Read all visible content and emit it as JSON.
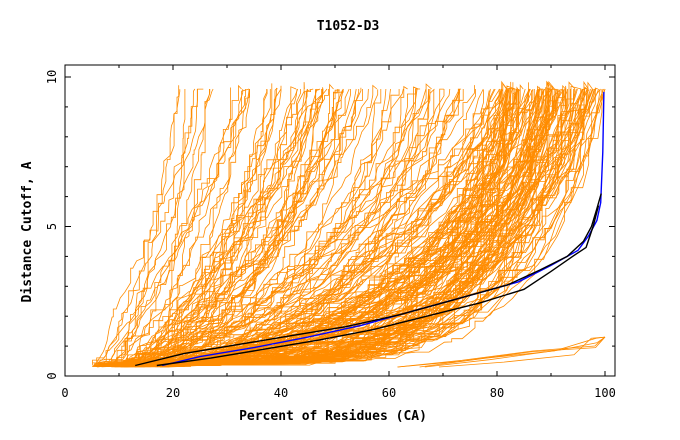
{
  "chart_data": {
    "type": "line",
    "title": "T1052-D3",
    "xlabel": "Percent of Residues (CA)",
    "ylabel": "Distance Cutoff, A",
    "xlim": [
      0,
      100
    ],
    "ylim": [
      0,
      10
    ],
    "x_ticks": [
      "0",
      "20",
      "40",
      "60",
      "80",
      "100"
    ],
    "y_ticks": [
      "0",
      "5",
      "10"
    ],
    "grid": false,
    "legend": "none",
    "colors": {
      "models": "#ff8c00",
      "highlight_black": "#000000",
      "highlight_blue": "#0000ff"
    },
    "highlighted_series": [
      {
        "color": "#0000ff",
        "x": [
          18,
          25,
          35,
          45,
          55,
          65,
          75,
          84,
          90,
          95,
          97,
          98.5,
          99.2,
          99.6,
          99.8
        ],
        "y": [
          0.35,
          0.65,
          0.95,
          1.3,
          1.7,
          2.2,
          2.7,
          3.15,
          3.7,
          4.2,
          4.7,
          5.2,
          5.8,
          7.5,
          9.5
        ]
      },
      {
        "color": "#000000",
        "x": [
          13,
          22,
          32,
          42,
          52,
          62,
          72,
          82,
          88,
          93,
          96,
          97.5,
          98.5,
          99.3
        ],
        "y": [
          0.35,
          0.75,
          1.05,
          1.35,
          1.65,
          2.05,
          2.55,
          3.05,
          3.55,
          4.0,
          4.5,
          5.0,
          5.6,
          6.1
        ]
      },
      {
        "color": "#000000",
        "x": [
          17,
          27,
          37,
          47,
          57,
          67,
          77,
          85,
          90,
          94,
          96.5,
          97.8,
          98.8
        ],
        "y": [
          0.35,
          0.6,
          0.9,
          1.2,
          1.55,
          2.0,
          2.45,
          2.9,
          3.5,
          4.0,
          4.3,
          5.0,
          5.7
        ]
      }
    ],
    "model_family_note": "many orange model curves"
  }
}
